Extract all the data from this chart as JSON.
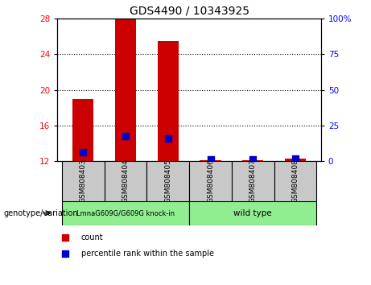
{
  "title": "GDS4490 / 10343925",
  "samples": [
    "GSM808403",
    "GSM808404",
    "GSM808405",
    "GSM808406",
    "GSM808407",
    "GSM808408"
  ],
  "count_values": [
    19.0,
    28.0,
    25.5,
    12.05,
    12.05,
    12.3
  ],
  "percentile_values": [
    13.0,
    14.8,
    14.5,
    12.15,
    12.2,
    12.25
  ],
  "ylim_left": [
    12,
    28
  ],
  "ylim_right": [
    0,
    100
  ],
  "yticks_left": [
    12,
    16,
    20,
    24,
    28
  ],
  "yticks_right": [
    0,
    25,
    50,
    75,
    100
  ],
  "ytick_labels_right": [
    "0",
    "25",
    "50",
    "75",
    "100%"
  ],
  "bar_color": "#cc0000",
  "dot_color": "#0000cc",
  "background_label": "#c8c8c8",
  "background_green": "#90ee90",
  "knock_in_label": "LmnaG609G/G609G knock-in",
  "wild_type_label": "wild type",
  "knock_in_indices": [
    0,
    1,
    2
  ],
  "wild_type_indices": [
    3,
    4,
    5
  ],
  "legend_count_label": "count",
  "legend_pct_label": "percentile rank within the sample",
  "genotype_label": "genotype/variation",
  "title_fontsize": 10,
  "tick_fontsize": 7.5,
  "sample_fontsize": 6.5,
  "legend_fontsize": 7,
  "genotype_fontsize": 7
}
